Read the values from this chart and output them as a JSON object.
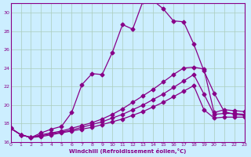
{
  "bg_color": "#cceeff",
  "grid_color": "#aaccbb",
  "line_color": "#880088",
  "xlabel": "Windchill (Refroidissement éolien,°C)",
  "xlim": [
    0,
    23
  ],
  "ylim": [
    16,
    31
  ],
  "yticks": [
    16,
    18,
    20,
    22,
    24,
    26,
    28,
    30
  ],
  "xticks": [
    0,
    1,
    2,
    3,
    4,
    5,
    6,
    7,
    8,
    9,
    10,
    11,
    12,
    13,
    14,
    15,
    16,
    17,
    18,
    19,
    20,
    21,
    22,
    23
  ],
  "s1_x": [
    0,
    1,
    2,
    3,
    4,
    5,
    6,
    7,
    8,
    9,
    10,
    11,
    12,
    13,
    14,
    15,
    16,
    17,
    18,
    19,
    20,
    21,
    22,
    23
  ],
  "s1_y": [
    17.5,
    16.8,
    16.5,
    17.0,
    17.4,
    17.7,
    19.2,
    22.2,
    23.4,
    23.3,
    25.7,
    28.7,
    28.2,
    31.2,
    31.3,
    30.4,
    29.1,
    29.0,
    26.6,
    23.7,
    21.3,
    19.3,
    19.0,
    18.9
  ],
  "s2_x": [
    0,
    1,
    2,
    3,
    4,
    5,
    6,
    7,
    8,
    9,
    10,
    11,
    12,
    13,
    14,
    15,
    16,
    17,
    18,
    19,
    20,
    21,
    22,
    23
  ],
  "s2_y": [
    17.5,
    16.8,
    16.5,
    16.8,
    17.0,
    17.2,
    17.5,
    17.8,
    18.1,
    18.5,
    19.0,
    19.6,
    20.3,
    21.0,
    21.7,
    22.5,
    23.3,
    24.0,
    24.1,
    23.9,
    19.2,
    19.5,
    19.4,
    19.3
  ],
  "s3_x": [
    0,
    1,
    2,
    3,
    4,
    5,
    6,
    7,
    8,
    9,
    10,
    11,
    12,
    13,
    14,
    15,
    16,
    17,
    18,
    19,
    20,
    21,
    22,
    23
  ],
  "s3_y": [
    17.5,
    16.8,
    16.5,
    16.7,
    16.9,
    17.1,
    17.3,
    17.6,
    17.9,
    18.2,
    18.6,
    19.0,
    19.5,
    20.0,
    20.6,
    21.2,
    21.9,
    22.6,
    23.3,
    21.2,
    19.0,
    19.1,
    19.1,
    19.0
  ],
  "s4_x": [
    0,
    1,
    2,
    3,
    4,
    5,
    6,
    7,
    8,
    9,
    10,
    11,
    12,
    13,
    14,
    15,
    16,
    17,
    18,
    19,
    20,
    21,
    22,
    23
  ],
  "s4_y": [
    17.5,
    16.8,
    16.5,
    16.6,
    16.8,
    17.0,
    17.2,
    17.4,
    17.6,
    17.9,
    18.2,
    18.5,
    18.9,
    19.3,
    19.8,
    20.3,
    20.9,
    21.5,
    22.1,
    19.5,
    18.6,
    18.7,
    18.7,
    18.7
  ]
}
